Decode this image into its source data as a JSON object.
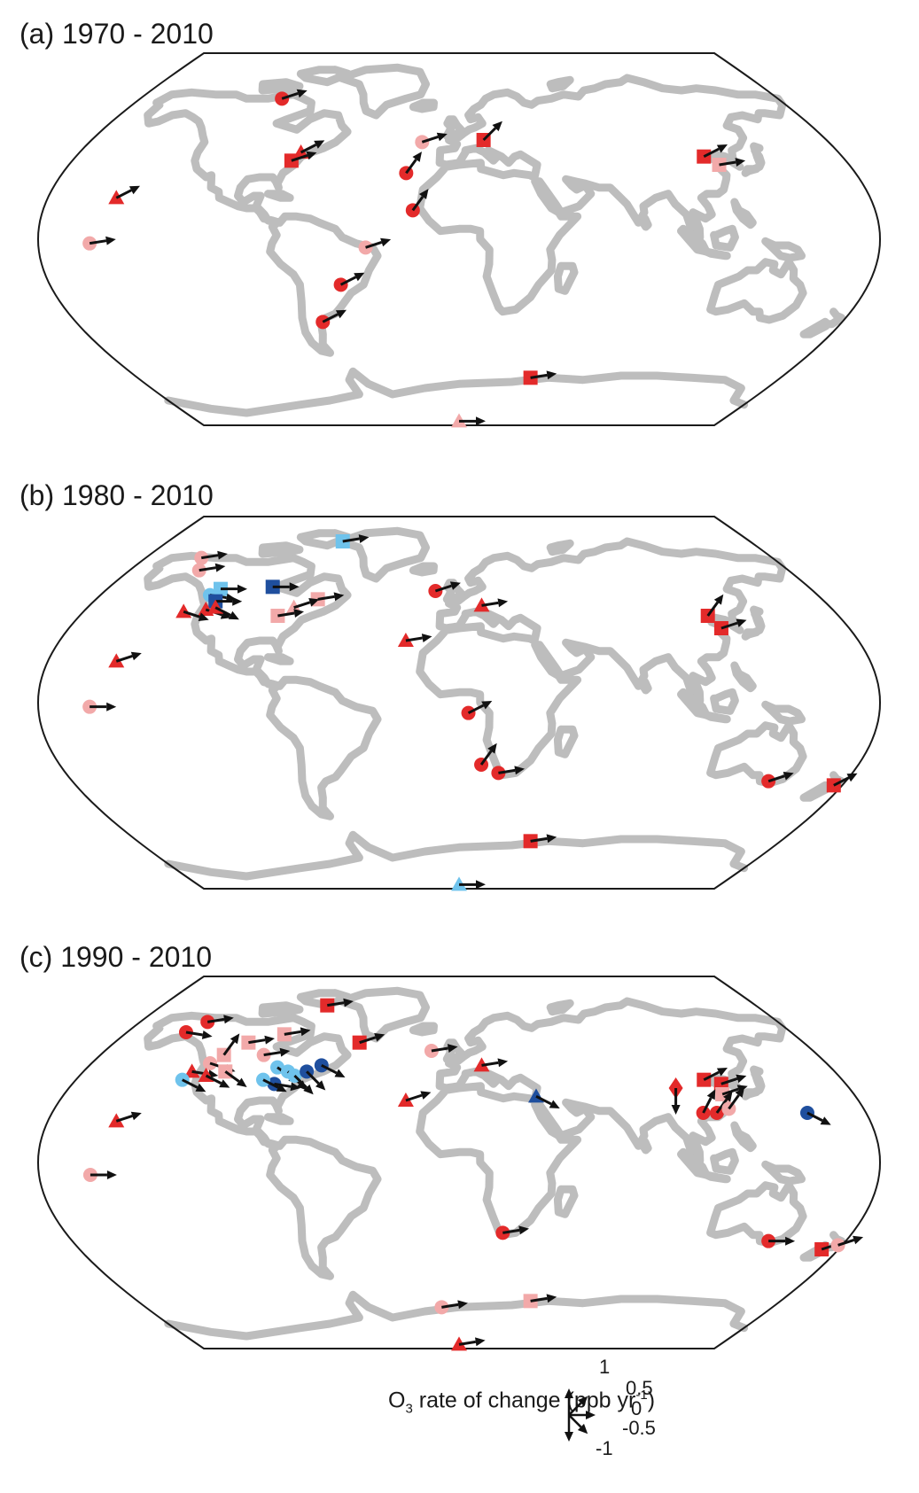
{
  "panels": [
    {
      "id": "a",
      "title": "(a) 1970 - 2010",
      "stations": [
        {
          "lon": -150,
          "lat": 20,
          "shape": "triangle",
          "color": "#e32a2a",
          "trend": 0.3
        },
        {
          "lon": -158,
          "lat": -2,
          "shape": "circle",
          "color": "#f2a9a9",
          "trend": 0.1
        },
        {
          "lon": -100,
          "lat": 68,
          "shape": "circle",
          "color": "#e32a2a",
          "trend": 0.2
        },
        {
          "lon": -75,
          "lat": 42,
          "shape": "triangle",
          "color": "#e32a2a",
          "trend": 0.3
        },
        {
          "lon": -78,
          "lat": 38,
          "shape": "square",
          "color": "#e32a2a",
          "trend": 0.2
        },
        {
          "lon": -24,
          "lat": 32,
          "shape": "circle",
          "color": "#e32a2a",
          "trend": 0.6
        },
        {
          "lon": -20,
          "lat": 14,
          "shape": "circle",
          "color": "#e32a2a",
          "trend": 0.6
        },
        {
          "lon": -18,
          "lat": 47,
          "shape": "circle",
          "color": "#f2a9a9",
          "trend": 0.2
        },
        {
          "lon": 12,
          "lat": 48,
          "shape": "square",
          "color": "#e32a2a",
          "trend": 0.5
        },
        {
          "lon": -40,
          "lat": -4,
          "shape": "circle",
          "color": "#f2a9a9",
          "trend": 0.2
        },
        {
          "lon": -52,
          "lat": -22,
          "shape": "circle",
          "color": "#e32a2a",
          "trend": 0.3
        },
        {
          "lon": -64,
          "lat": -40,
          "shape": "circle",
          "color": "#e32a2a",
          "trend": 0.3
        },
        {
          "lon": 115,
          "lat": 40,
          "shape": "square",
          "color": "#e32a2a",
          "trend": 0.3
        },
        {
          "lon": 120,
          "lat": 36,
          "shape": "square",
          "color": "#f2a9a9",
          "trend": 0.1
        },
        {
          "lon": 40,
          "lat": -67,
          "shape": "square",
          "color": "#e32a2a",
          "trend": 0.1
        },
        {
          "lon": 0,
          "lat": -88,
          "shape": "triangle",
          "color": "#f2a9a9",
          "trend": 0.0
        }
      ]
    },
    {
      "id": "b",
      "title": "(b) 1980 - 2010",
      "stations": [
        {
          "lon": -150,
          "lat": 20,
          "shape": "triangle",
          "color": "#e32a2a",
          "trend": 0.2
        },
        {
          "lon": -158,
          "lat": -2,
          "shape": "circle",
          "color": "#f2a9a9",
          "trend": 0.0
        },
        {
          "lon": -142,
          "lat": 64,
          "shape": "circle",
          "color": "#f2a9a9",
          "trend": 0.1
        },
        {
          "lon": -148,
          "lat": 70,
          "shape": "circle",
          "color": "#f2a9a9",
          "trend": 0.1
        },
        {
          "lon": -122,
          "lat": 55,
          "shape": "square",
          "color": "#6fc3ec",
          "trend": 0.0
        },
        {
          "lon": -125,
          "lat": 52,
          "shape": "circle",
          "color": "#6fc3ec",
          "trend": -0.1
        },
        {
          "lon": -120,
          "lat": 49,
          "shape": "square",
          "color": "#1f4f9e",
          "trend": 0.0
        },
        {
          "lon": -122,
          "lat": 45,
          "shape": "triangle",
          "color": "#e32a2a",
          "trend": -0.2
        },
        {
          "lon": -118,
          "lat": 46,
          "shape": "triangle",
          "color": "#e32a2a",
          "trend": -0.3
        },
        {
          "lon": -132,
          "lat": 44,
          "shape": "triangle",
          "color": "#e32a2a",
          "trend": -0.2
        },
        {
          "lon": -96,
          "lat": 56,
          "shape": "square",
          "color": "#1f4f9e",
          "trend": 0.0
        },
        {
          "lon": -72,
          "lat": 78,
          "shape": "square",
          "color": "#6fc3ec",
          "trend": 0.1
        },
        {
          "lon": -70,
          "lat": 50,
          "shape": "square",
          "color": "#f2a9a9",
          "trend": 0.1
        },
        {
          "lon": -80,
          "lat": 46,
          "shape": "triangle",
          "color": "#f2a9a9",
          "trend": 0.2
        },
        {
          "lon": -86,
          "lat": 42,
          "shape": "square",
          "color": "#f2a9a9",
          "trend": 0.1
        },
        {
          "lon": -12,
          "lat": 54,
          "shape": "circle",
          "color": "#e32a2a",
          "trend": 0.2
        },
        {
          "lon": 11,
          "lat": 47,
          "shape": "triangle",
          "color": "#e32a2a",
          "trend": 0.1
        },
        {
          "lon": -24,
          "lat": 30,
          "shape": "triangle",
          "color": "#e32a2a",
          "trend": 0.1
        },
        {
          "lon": 4,
          "lat": -5,
          "shape": "circle",
          "color": "#e32a2a",
          "trend": 0.3
        },
        {
          "lon": 10,
          "lat": -30,
          "shape": "circle",
          "color": "#e32a2a",
          "trend": 0.6
        },
        {
          "lon": 18,
          "lat": -34,
          "shape": "circle",
          "color": "#e32a2a",
          "trend": 0.1
        },
        {
          "lon": 118,
          "lat": 42,
          "shape": "square",
          "color": "#e32a2a",
          "trend": 0.6
        },
        {
          "lon": 121,
          "lat": 36,
          "shape": "square",
          "color": "#e32a2a",
          "trend": 0.2
        },
        {
          "lon": 144,
          "lat": -38,
          "shape": "circle",
          "color": "#e32a2a",
          "trend": 0.2
        },
        {
          "lon": 176,
          "lat": -40,
          "shape": "square",
          "color": "#e32a2a",
          "trend": 0.3
        },
        {
          "lon": 40,
          "lat": -67,
          "shape": "square",
          "color": "#e32a2a",
          "trend": 0.1
        },
        {
          "lon": 0,
          "lat": -88,
          "shape": "triangle",
          "color": "#6fc3ec",
          "trend": 0.0
        }
      ]
    },
    {
      "id": "c",
      "title": "(c) 1990 - 2010",
      "stations": [
        {
          "lon": -150,
          "lat": 20,
          "shape": "triangle",
          "color": "#e32a2a",
          "trend": 0.2
        },
        {
          "lon": -158,
          "lat": -6,
          "shape": "circle",
          "color": "#f2a9a9",
          "trend": 0.0
        },
        {
          "lon": -142,
          "lat": 68,
          "shape": "circle",
          "color": "#e32a2a",
          "trend": 0.1
        },
        {
          "lon": -148,
          "lat": 63,
          "shape": "circle",
          "color": "#e32a2a",
          "trend": -0.1
        },
        {
          "lon": -110,
          "lat": 58,
          "shape": "square",
          "color": "#f2a9a9",
          "trend": 0.1
        },
        {
          "lon": -118,
          "lat": 52,
          "shape": "square",
          "color": "#f2a9a9",
          "trend": 0.6
        },
        {
          "lon": -122,
          "lat": 48,
          "shape": "circle",
          "color": "#f2a9a9",
          "trend": -0.2
        },
        {
          "lon": -128,
          "lat": 44,
          "shape": "triangle",
          "color": "#e32a2a",
          "trend": -0.1
        },
        {
          "lon": -130,
          "lat": 40,
          "shape": "circle",
          "color": "#6fc3ec",
          "trend": -0.3
        },
        {
          "lon": -120,
          "lat": 42,
          "shape": "triangle",
          "color": "#e32a2a",
          "trend": -0.3
        },
        {
          "lon": -112,
          "lat": 44,
          "shape": "square",
          "color": "#f2a9a9",
          "trend": -0.4
        },
        {
          "lon": -88,
          "lat": 46,
          "shape": "circle",
          "color": "#6fc3ec",
          "trend": -0.4
        },
        {
          "lon": -82,
          "lat": 44,
          "shape": "circle",
          "color": "#6fc3ec",
          "trend": -0.5
        },
        {
          "lon": -78,
          "lat": 42,
          "shape": "circle",
          "color": "#6fc3ec",
          "trend": -0.5
        },
        {
          "lon": -73,
          "lat": 44,
          "shape": "circle",
          "color": "#1f4f9e",
          "trend": -0.5
        },
        {
          "lon": -67,
          "lat": 47,
          "shape": "circle",
          "color": "#1f4f9e",
          "trend": -0.3
        },
        {
          "lon": -86,
          "lat": 38,
          "shape": "circle",
          "color": "#1f4f9e",
          "trend": -0.1
        },
        {
          "lon": -92,
          "lat": 40,
          "shape": "circle",
          "color": "#6fc3ec",
          "trend": -0.3
        },
        {
          "lon": -98,
          "lat": 52,
          "shape": "circle",
          "color": "#f2a9a9",
          "trend": 0.1
        },
        {
          "lon": -80,
          "lat": 76,
          "shape": "square",
          "color": "#e32a2a",
          "trend": 0.1
        },
        {
          "lon": -94,
          "lat": 62,
          "shape": "square",
          "color": "#f2a9a9",
          "trend": 0.1
        },
        {
          "lon": -52,
          "lat": 58,
          "shape": "square",
          "color": "#e32a2a",
          "trend": 0.2
        },
        {
          "lon": -14,
          "lat": 54,
          "shape": "circle",
          "color": "#f2a9a9",
          "trend": 0.1
        },
        {
          "lon": 11,
          "lat": 47,
          "shape": "triangle",
          "color": "#e32a2a",
          "trend": 0.1
        },
        {
          "lon": -24,
          "lat": 30,
          "shape": "triangle",
          "color": "#e32a2a",
          "trend": 0.2
        },
        {
          "lon": 35,
          "lat": 32,
          "shape": "triangle",
          "color": "#1f4f9e",
          "trend": -0.3
        },
        {
          "lon": 100,
          "lat": 36,
          "shape": "diamond",
          "color": "#e32a2a",
          "trend": -1.0
        },
        {
          "lon": 115,
          "lat": 40,
          "shape": "square",
          "color": "#e32a2a",
          "trend": 0.3
        },
        {
          "lon": 122,
          "lat": 38,
          "shape": "square",
          "color": "#e32a2a",
          "trend": 0.2
        },
        {
          "lon": 120,
          "lat": 33,
          "shape": "square",
          "color": "#f2a9a9",
          "trend": 0.2
        },
        {
          "lon": 108,
          "lat": 24,
          "shape": "circle",
          "color": "#e32a2a",
          "trend": 0.7
        },
        {
          "lon": 114,
          "lat": 24,
          "shape": "circle",
          "color": "#e32a2a",
          "trend": 0.6
        },
        {
          "lon": 120,
          "lat": 26,
          "shape": "circle",
          "color": "#f2a9a9",
          "trend": 0.6
        },
        {
          "lon": 154,
          "lat": 24,
          "shape": "circle",
          "color": "#1f4f9e",
          "trend": -0.3
        },
        {
          "lon": 20,
          "lat": -34,
          "shape": "circle",
          "color": "#e32a2a",
          "trend": 0.1
        },
        {
          "lon": 144,
          "lat": -38,
          "shape": "circle",
          "color": "#e32a2a",
          "trend": 0.0
        },
        {
          "lon": 172,
          "lat": -42,
          "shape": "square",
          "color": "#e32a2a",
          "trend": 0.2
        },
        {
          "lon": 178,
          "lat": -40,
          "shape": "circle",
          "color": "#f2a9a9",
          "trend": 0.2
        },
        {
          "lon": -10,
          "lat": -70,
          "shape": "circle",
          "color": "#f2a9a9",
          "trend": 0.1
        },
        {
          "lon": 40,
          "lat": -67,
          "shape": "square",
          "color": "#f2a9a9",
          "trend": 0.1
        },
        {
          "lon": 0,
          "lat": -88,
          "shape": "triangle",
          "color": "#e32a2a",
          "trend": 0.1
        }
      ]
    }
  ],
  "legend": {
    "label_main": "O",
    "label_sub": "3",
    "label_mid": " rate of change (ppb yr",
    "label_sup": "-1",
    "label_end": ")",
    "ticks": [
      {
        "value": 1,
        "text": "1"
      },
      {
        "value": 0.5,
        "text": "0.5"
      },
      {
        "value": 0,
        "text": "0"
      },
      {
        "value": -0.5,
        "text": "-0.5"
      },
      {
        "value": -1,
        "text": "-1"
      }
    ]
  },
  "colors": {
    "strong_increase": "#e32a2a",
    "weak_increase": "#f2a9a9",
    "weak_decrease": "#6fc3ec",
    "strong_decrease": "#1f4f9e",
    "land": "#bdbdbd"
  }
}
